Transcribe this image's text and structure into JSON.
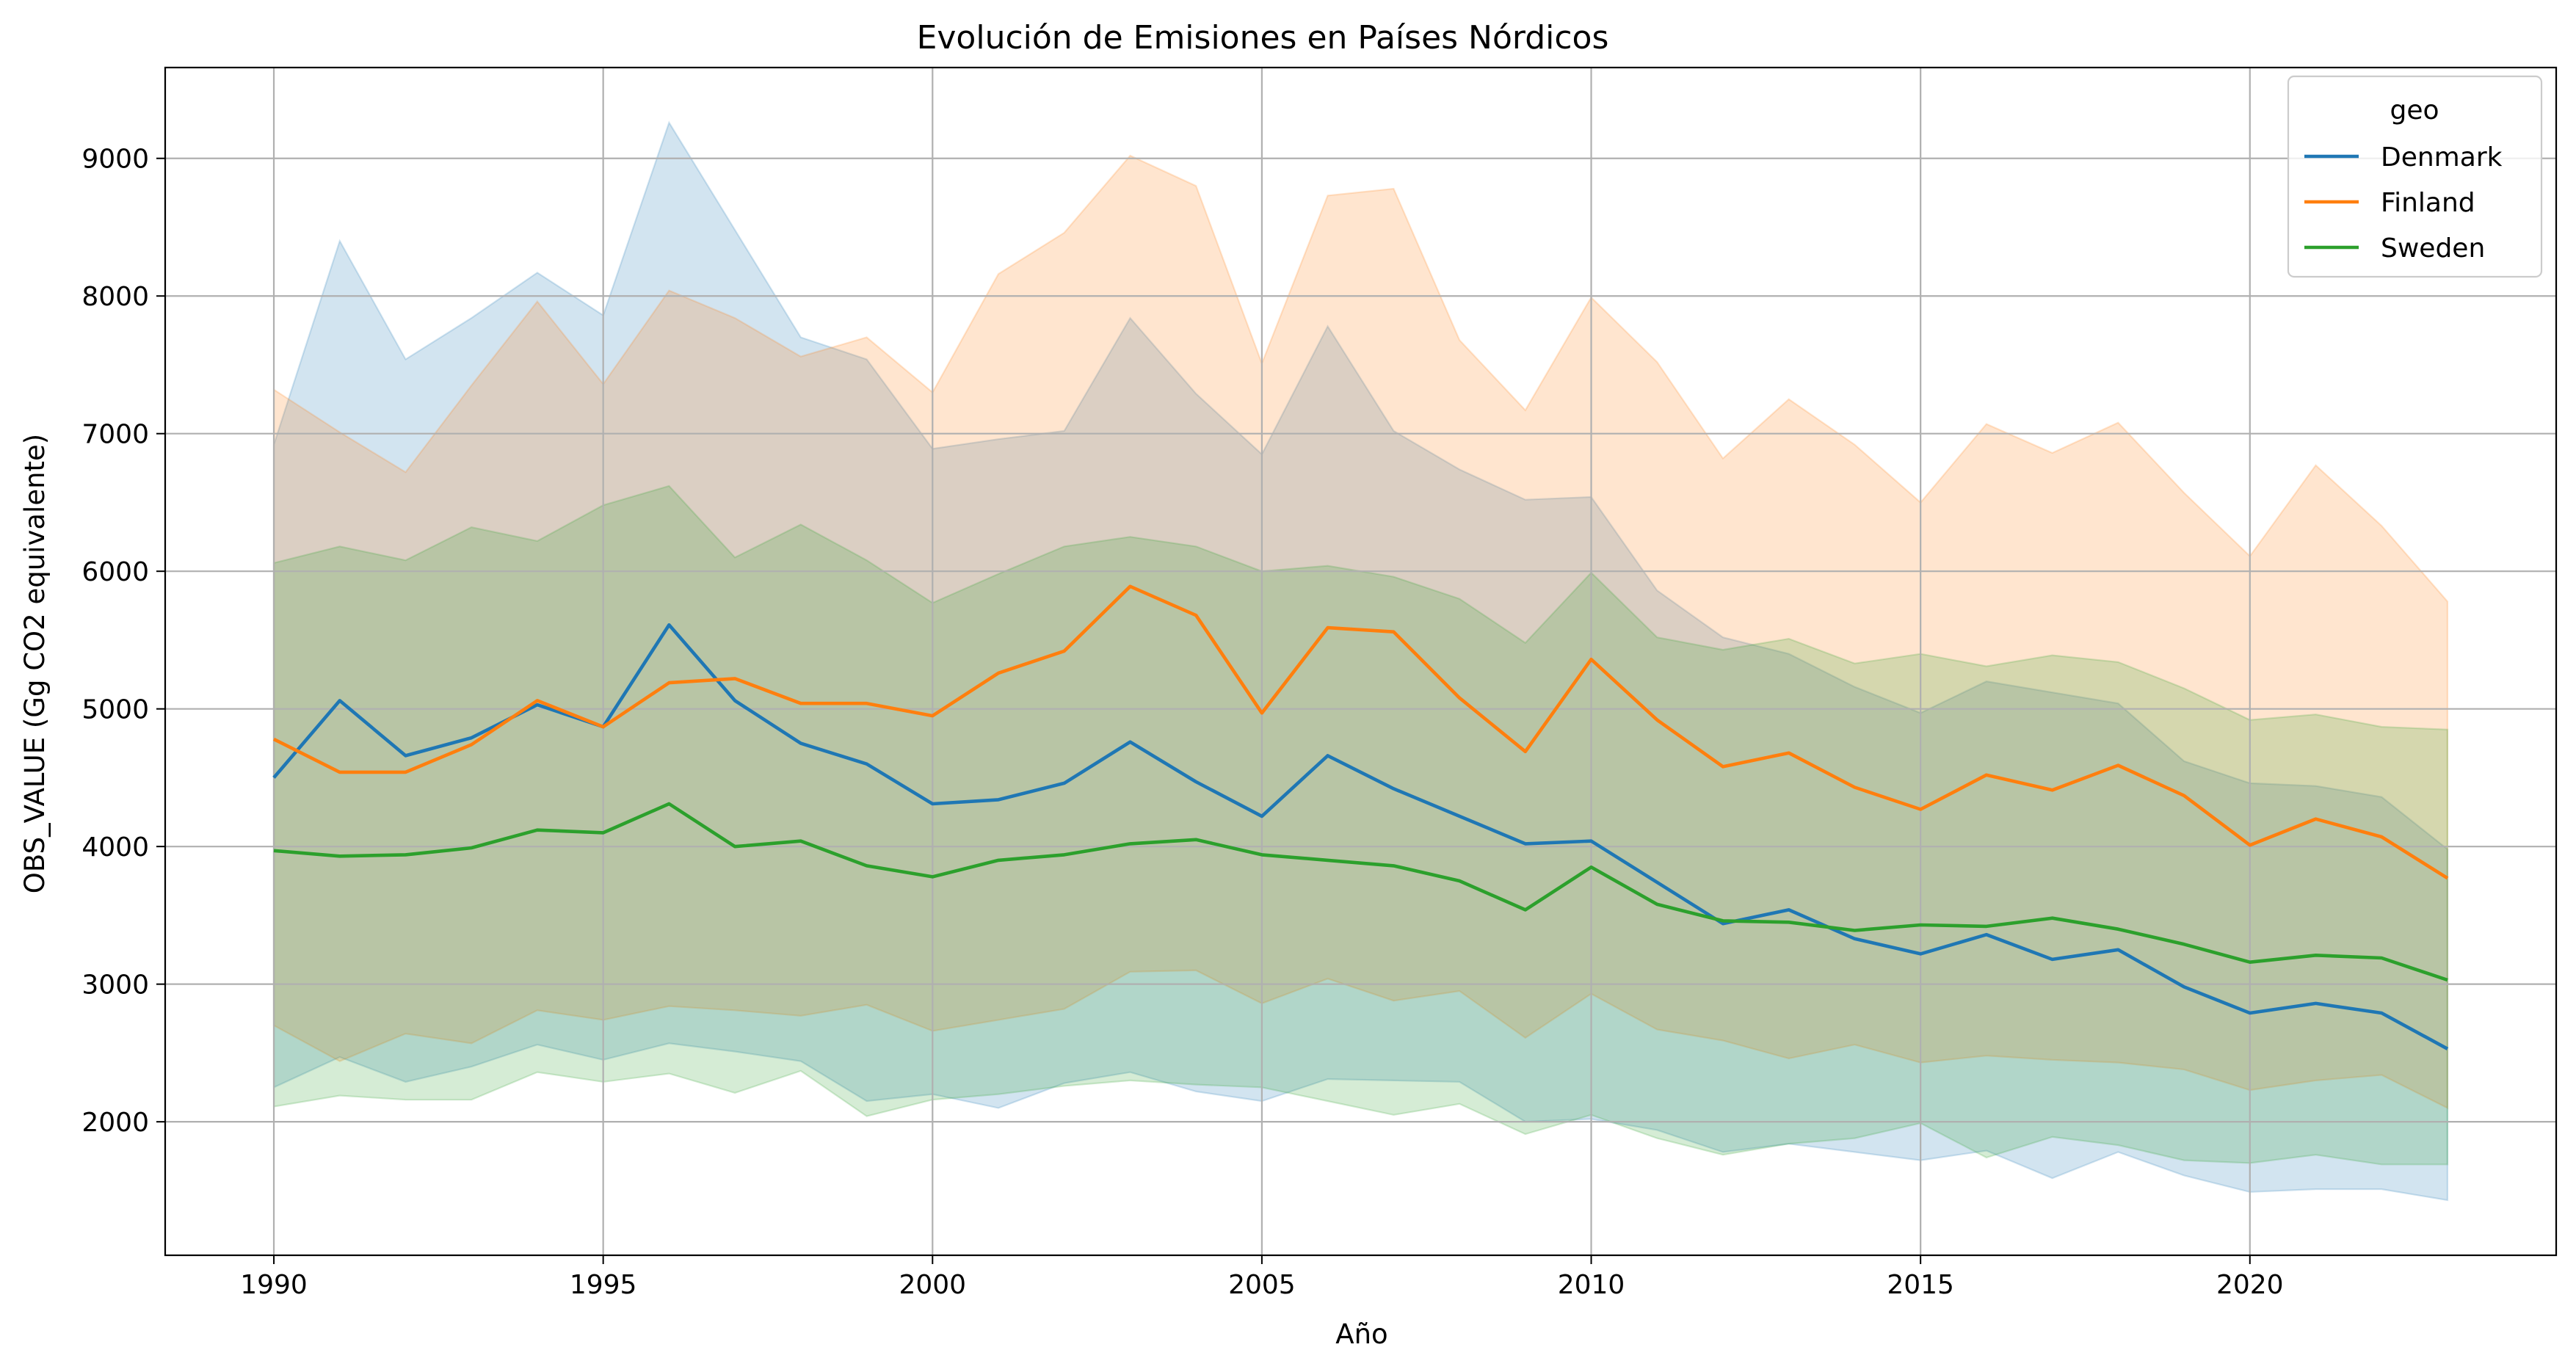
{
  "chart_data": {
    "type": "line",
    "title": "Evolución de Emisiones en Países Nórdicos",
    "xlabel": "Año",
    "ylabel": "OBS_VALUE (Gg CO2 equivalente)",
    "xlim": [
      1988.35,
      2024.65
    ],
    "ylim": [
      1030,
      9660
    ],
    "x_ticks": [
      1990,
      1995,
      2000,
      2005,
      2010,
      2015,
      2020
    ],
    "y_ticks": [
      2000,
      3000,
      4000,
      5000,
      6000,
      7000,
      8000,
      9000
    ],
    "grid": true,
    "legend": {
      "title": "geo",
      "placement": "top-right"
    },
    "confidence_band_opacity": 0.2,
    "x": [
      1990,
      1991,
      1992,
      1993,
      1994,
      1995,
      1996,
      1997,
      1998,
      1999,
      2000,
      2001,
      2002,
      2003,
      2004,
      2005,
      2006,
      2007,
      2008,
      2009,
      2010,
      2011,
      2012,
      2013,
      2014,
      2015,
      2016,
      2017,
      2018,
      2019,
      2020,
      2021,
      2022,
      2023
    ],
    "series": [
      {
        "name": "Denmark",
        "color": "#1f77b4",
        "values": [
          4500,
          5060,
          4660,
          4790,
          5030,
          4870,
          5610,
          5060,
          4750,
          4600,
          4310,
          4340,
          4460,
          4760,
          4470,
          4220,
          4660,
          4420,
          4220,
          4020,
          4040,
          3740,
          3440,
          3540,
          3330,
          3220,
          3360,
          3180,
          3250,
          2980,
          2790,
          2860,
          2790,
          2530
        ],
        "upper": [
          6920,
          8400,
          7540,
          7840,
          8170,
          7860,
          9260,
          8480,
          7700,
          7540,
          6890,
          6960,
          7020,
          7840,
          7290,
          6850,
          7780,
          7020,
          6740,
          6520,
          6540,
          5860,
          5520,
          5400,
          5160,
          4970,
          5200,
          5120,
          5040,
          4620,
          4460,
          4440,
          4360,
          3980
        ],
        "lower": [
          2250,
          2470,
          2290,
          2400,
          2560,
          2450,
          2570,
          2510,
          2440,
          2150,
          2200,
          2100,
          2280,
          2360,
          2220,
          2150,
          2310,
          2300,
          2290,
          2000,
          2020,
          1940,
          1780,
          1840,
          1780,
          1720,
          1790,
          1590,
          1780,
          1610,
          1490,
          1510,
          1510,
          1430
        ]
      },
      {
        "name": "Finland",
        "color": "#ff7f0e",
        "values": [
          4780,
          4540,
          4540,
          4740,
          5060,
          4870,
          5190,
          5220,
          5040,
          5040,
          4950,
          5260,
          5420,
          5890,
          5680,
          4970,
          5590,
          5560,
          5080,
          4690,
          5360,
          4920,
          4580,
          4680,
          4430,
          4270,
          4520,
          4410,
          4590,
          4370,
          4010,
          4200,
          4070,
          3770
        ],
        "upper": [
          7320,
          7010,
          6720,
          7350,
          7960,
          7360,
          8040,
          7840,
          7560,
          7700,
          7300,
          8160,
          8460,
          9020,
          8800,
          7510,
          8730,
          8780,
          7680,
          7170,
          7990,
          7520,
          6820,
          7250,
          6920,
          6500,
          7070,
          6860,
          7080,
          6570,
          6110,
          6770,
          6330,
          5780
        ],
        "lower": [
          2700,
          2440,
          2640,
          2570,
          2810,
          2740,
          2840,
          2810,
          2770,
          2850,
          2660,
          2740,
          2820,
          3090,
          3100,
          2860,
          3040,
          2880,
          2950,
          2610,
          2930,
          2670,
          2590,
          2460,
          2560,
          2430,
          2480,
          2450,
          2430,
          2380,
          2230,
          2300,
          2340,
          2100
        ]
      },
      {
        "name": "Sweden",
        "color": "#2ca02c",
        "values": [
          3970,
          3930,
          3940,
          3990,
          4120,
          4100,
          4310,
          4000,
          4040,
          3860,
          3780,
          3900,
          3940,
          4020,
          4050,
          3940,
          3900,
          3860,
          3750,
          3540,
          3850,
          3580,
          3460,
          3450,
          3390,
          3430,
          3420,
          3480,
          3400,
          3290,
          3160,
          3210,
          3190,
          3030
        ],
        "upper": [
          6060,
          6180,
          6080,
          6320,
          6220,
          6480,
          6620,
          6100,
          6340,
          6080,
          5770,
          5980,
          6180,
          6250,
          6180,
          6000,
          6040,
          5960,
          5800,
          5480,
          5990,
          5520,
          5430,
          5510,
          5330,
          5400,
          5310,
          5390,
          5340,
          5150,
          4920,
          4960,
          4870,
          4850
        ],
        "lower": [
          2110,
          2190,
          2160,
          2160,
          2360,
          2290,
          2350,
          2210,
          2370,
          2040,
          2160,
          2200,
          2260,
          2300,
          2270,
          2250,
          2150,
          2050,
          2130,
          1910,
          2050,
          1880,
          1760,
          1840,
          1880,
          1990,
          1740,
          1890,
          1830,
          1720,
          1700,
          1760,
          1690,
          1690
        ]
      }
    ]
  }
}
